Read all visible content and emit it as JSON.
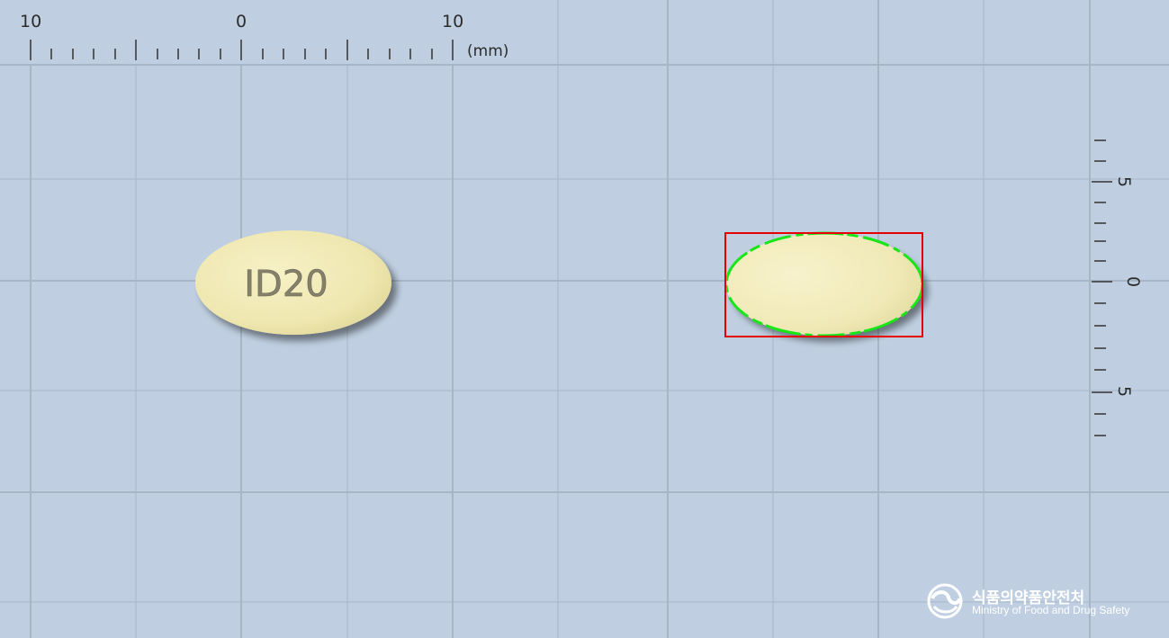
{
  "ruler_top": {
    "labels": [
      "10",
      "0",
      "10"
    ],
    "unit": "(mm)"
  },
  "ruler_right": {
    "labels": [
      "5",
      "0",
      "5"
    ]
  },
  "pill_left": {
    "imprint": "ID20",
    "color": "#efe8b3"
  },
  "pill_right": {
    "color": "#f1ebb8",
    "box_color": "#e60000",
    "contour_color": "#19e619"
  },
  "logo": {
    "korean": "식품의약품안전처",
    "english": "Ministry of Food and Drug Safety"
  },
  "colors": {
    "background": "#bfcfe1",
    "grid": "#a7b6c7"
  }
}
